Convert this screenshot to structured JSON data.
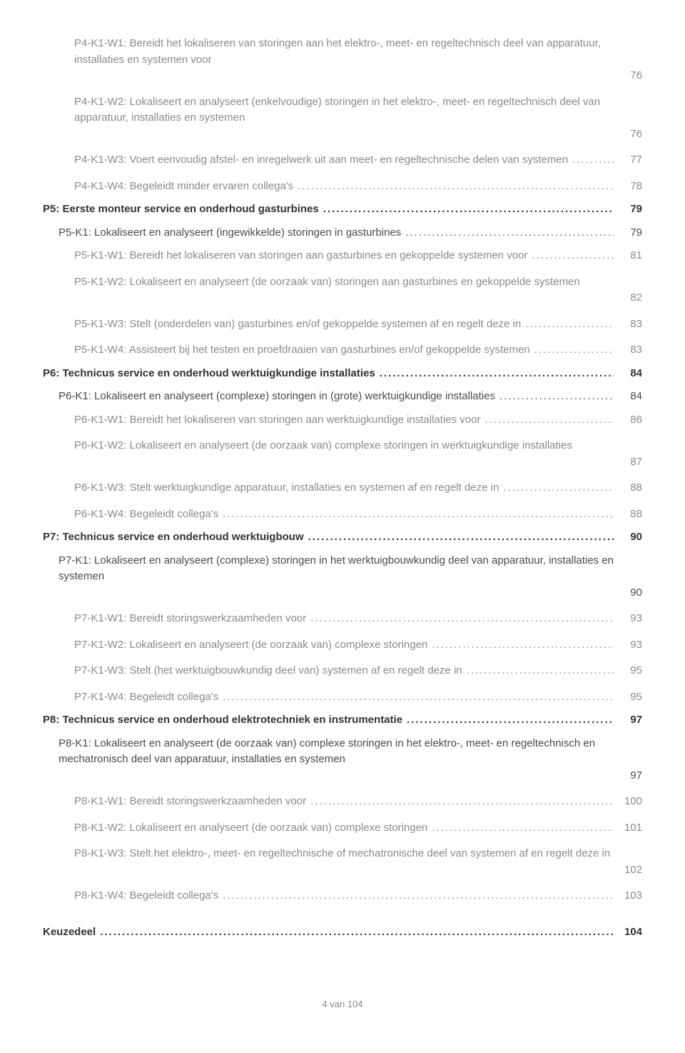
{
  "entries": [
    {
      "level": 3,
      "label": "P4-K1-W1: Bereidt het lokaliseren van storingen aan het elektro-, meet- en regeltechnisch deel van apparatuur, installaties en systemen voor",
      "page": "76",
      "multiline": true
    },
    {
      "level": 3,
      "label": "P4-K1-W2: Lokaliseert en analyseert (enkelvoudige) storingen in het elektro-, meet- en regeltechnisch deel van apparatuur, installaties en systemen",
      "page": "76",
      "multiline": true,
      "spacedTop": true
    },
    {
      "level": 3,
      "label": "P4-K1-W3: Voert eenvoudig afstel- en inregelwerk uit aan meet- en regeltechnische delen van systemen",
      "page": "77",
      "spacedTop": true
    },
    {
      "level": 3,
      "label": "P4-K1-W4: Begeleidt minder ervaren collega's",
      "page": "78",
      "spacedTop": true
    },
    {
      "level": 1,
      "label": "P5: Eerste monteur service en onderhoud gasturbines",
      "page": "79"
    },
    {
      "level": 2,
      "label": "P5-K1: Lokaliseert en analyseert (ingewikkelde) storingen in gasturbines",
      "page": "79"
    },
    {
      "level": 3,
      "label": "P5-K1-W1: Bereidt het lokaliseren van storingen aan gasturbines en gekoppelde systemen voor",
      "page": "81"
    },
    {
      "level": 3,
      "label": "P5-K1-W2: Lokaliseert en analyseert (de oorzaak van) storingen aan gasturbines en gekoppelde systemen",
      "page": "82",
      "multiline": true,
      "emptyLastLine": true,
      "spacedTop": true
    },
    {
      "level": 3,
      "label": "P5-K1-W3: Stelt (onderdelen van) gasturbines en/of gekoppelde systemen af en regelt deze in",
      "page": "83",
      "spacedTop": true
    },
    {
      "level": 3,
      "label": "P5-K1-W4: Assisteert bij het testen en proefdraaien van gasturbines en/of gekoppelde systemen",
      "page": "83",
      "spacedTop": true
    },
    {
      "level": 1,
      "label": "P6: Technicus service en onderhoud werktuigkundige installaties",
      "page": "84"
    },
    {
      "level": 2,
      "label": "P6-K1: Lokaliseert en analyseert (complexe) storingen in (grote) werktuigkundige installaties",
      "page": "84"
    },
    {
      "level": 3,
      "label": "P6-K1-W1: Bereidt het lokaliseren van storingen aan werktuigkundige installaties voor",
      "page": "86"
    },
    {
      "level": 3,
      "label": "P6-K1-W2: Lokaliseert en analyseert (de oorzaak van) complexe storingen in werktuigkundige installaties",
      "page": "87",
      "multiline": true,
      "emptyLastLine": true,
      "spacedTop": true
    },
    {
      "level": 3,
      "label": "P6-K1-W3: Stelt werktuigkundige apparatuur, installaties en systemen af en regelt deze in",
      "page": "88",
      "spacedTop": true
    },
    {
      "level": 3,
      "label": "P6-K1-W4: Begeleidt collega's",
      "page": "88",
      "spacedTop": true
    },
    {
      "level": 1,
      "label": "P7: Technicus service en onderhoud werktuigbouw",
      "page": "90"
    },
    {
      "level": 2,
      "label": "P7-K1: Lokaliseert en analyseert (complexe) storingen in het werktuigbouwkundig deel van apparatuur, installaties en systemen",
      "page": "90",
      "multiline": true
    },
    {
      "level": 3,
      "label": "P7-K1-W1: Bereidt storingswerkzaamheden voor",
      "page": "93",
      "spacedTop": true
    },
    {
      "level": 3,
      "label": "P7-K1-W2: Lokaliseert en analyseert (de oorzaak van) complexe storingen",
      "page": "93",
      "spacedTop": true
    },
    {
      "level": 3,
      "label": "P7-K1-W3: Stelt (het werktuigbouwkundig deel van) systemen af en regelt deze in",
      "page": "95",
      "spacedTop": true
    },
    {
      "level": 3,
      "label": "P7-K1-W4: Begeleidt collega's",
      "page": "95",
      "spacedTop": true
    },
    {
      "level": 1,
      "label": "P8: Technicus service en onderhoud elektrotechniek en instrumentatie",
      "page": "97"
    },
    {
      "level": 2,
      "label": "P8-K1: Lokaliseert en analyseert (de oorzaak van) complexe storingen in het elektro-, meet- en regeltechnisch en mechatronisch deel van apparatuur, installaties en systemen",
      "page": "97",
      "multiline": true
    },
    {
      "level": 3,
      "label": "P8-K1-W1: Bereidt storingswerkzaamheden voor",
      "page": "100",
      "spacedTop": true
    },
    {
      "level": 3,
      "label": "P8-K1-W2: Lokaliseert en analyseert (de oorzaak van) complexe storingen",
      "page": "101",
      "spacedTop": true
    },
    {
      "level": 3,
      "label": "P8-K1-W3: Stelt het elektro-, meet- en regeltechnische of mechatronische deel van systemen af en regelt deze in",
      "page": "102",
      "multiline": true,
      "spacedTop": true
    },
    {
      "level": 3,
      "label": "P8-K1-W4: Begeleidt collega's",
      "page": "103",
      "spacedTop": true
    },
    {
      "level": 0,
      "label": "Keuzedeel",
      "page": "104",
      "spacedTop": true,
      "extraSpaced": true
    }
  ],
  "footer": "4 van 104",
  "colors": {
    "level0": "#333333",
    "level1": "#333333",
    "level2": "#4a4a4a",
    "level3": "#8a8a8a",
    "footer": "#888888",
    "background": "#ffffff"
  }
}
